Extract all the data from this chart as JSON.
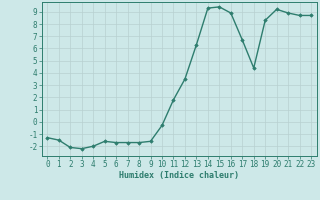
{
  "x": [
    0,
    1,
    2,
    3,
    4,
    5,
    6,
    7,
    8,
    9,
    10,
    11,
    12,
    13,
    14,
    15,
    16,
    17,
    18,
    19,
    20,
    21,
    22,
    23
  ],
  "y": [
    -1.3,
    -1.5,
    -2.1,
    -2.2,
    -2.0,
    -1.6,
    -1.7,
    -1.7,
    -1.7,
    -1.6,
    -0.3,
    1.8,
    3.5,
    6.3,
    9.3,
    9.4,
    8.9,
    6.7,
    4.4,
    8.3,
    9.2,
    8.9,
    8.7,
    8.7
  ],
  "line_color": "#2e7d6e",
  "marker": "D",
  "marker_size": 1.8,
  "xlabel": "Humidex (Indice chaleur)",
  "xlim": [
    -0.5,
    23.5
  ],
  "ylim": [
    -2.8,
    9.8
  ],
  "yticks": [
    -2,
    -1,
    0,
    1,
    2,
    3,
    4,
    5,
    6,
    7,
    8,
    9
  ],
  "xticks": [
    0,
    1,
    2,
    3,
    4,
    5,
    6,
    7,
    8,
    9,
    10,
    11,
    12,
    13,
    14,
    15,
    16,
    17,
    18,
    19,
    20,
    21,
    22,
    23
  ],
  "bg_color": "#cde8e8",
  "grid_color": "#b8d0d0",
  "text_color": "#2e7d6e",
  "tick_color": "#2e7d6e",
  "line_width": 1.0,
  "xlabel_fontsize": 6.0,
  "tick_fontsize": 5.5
}
